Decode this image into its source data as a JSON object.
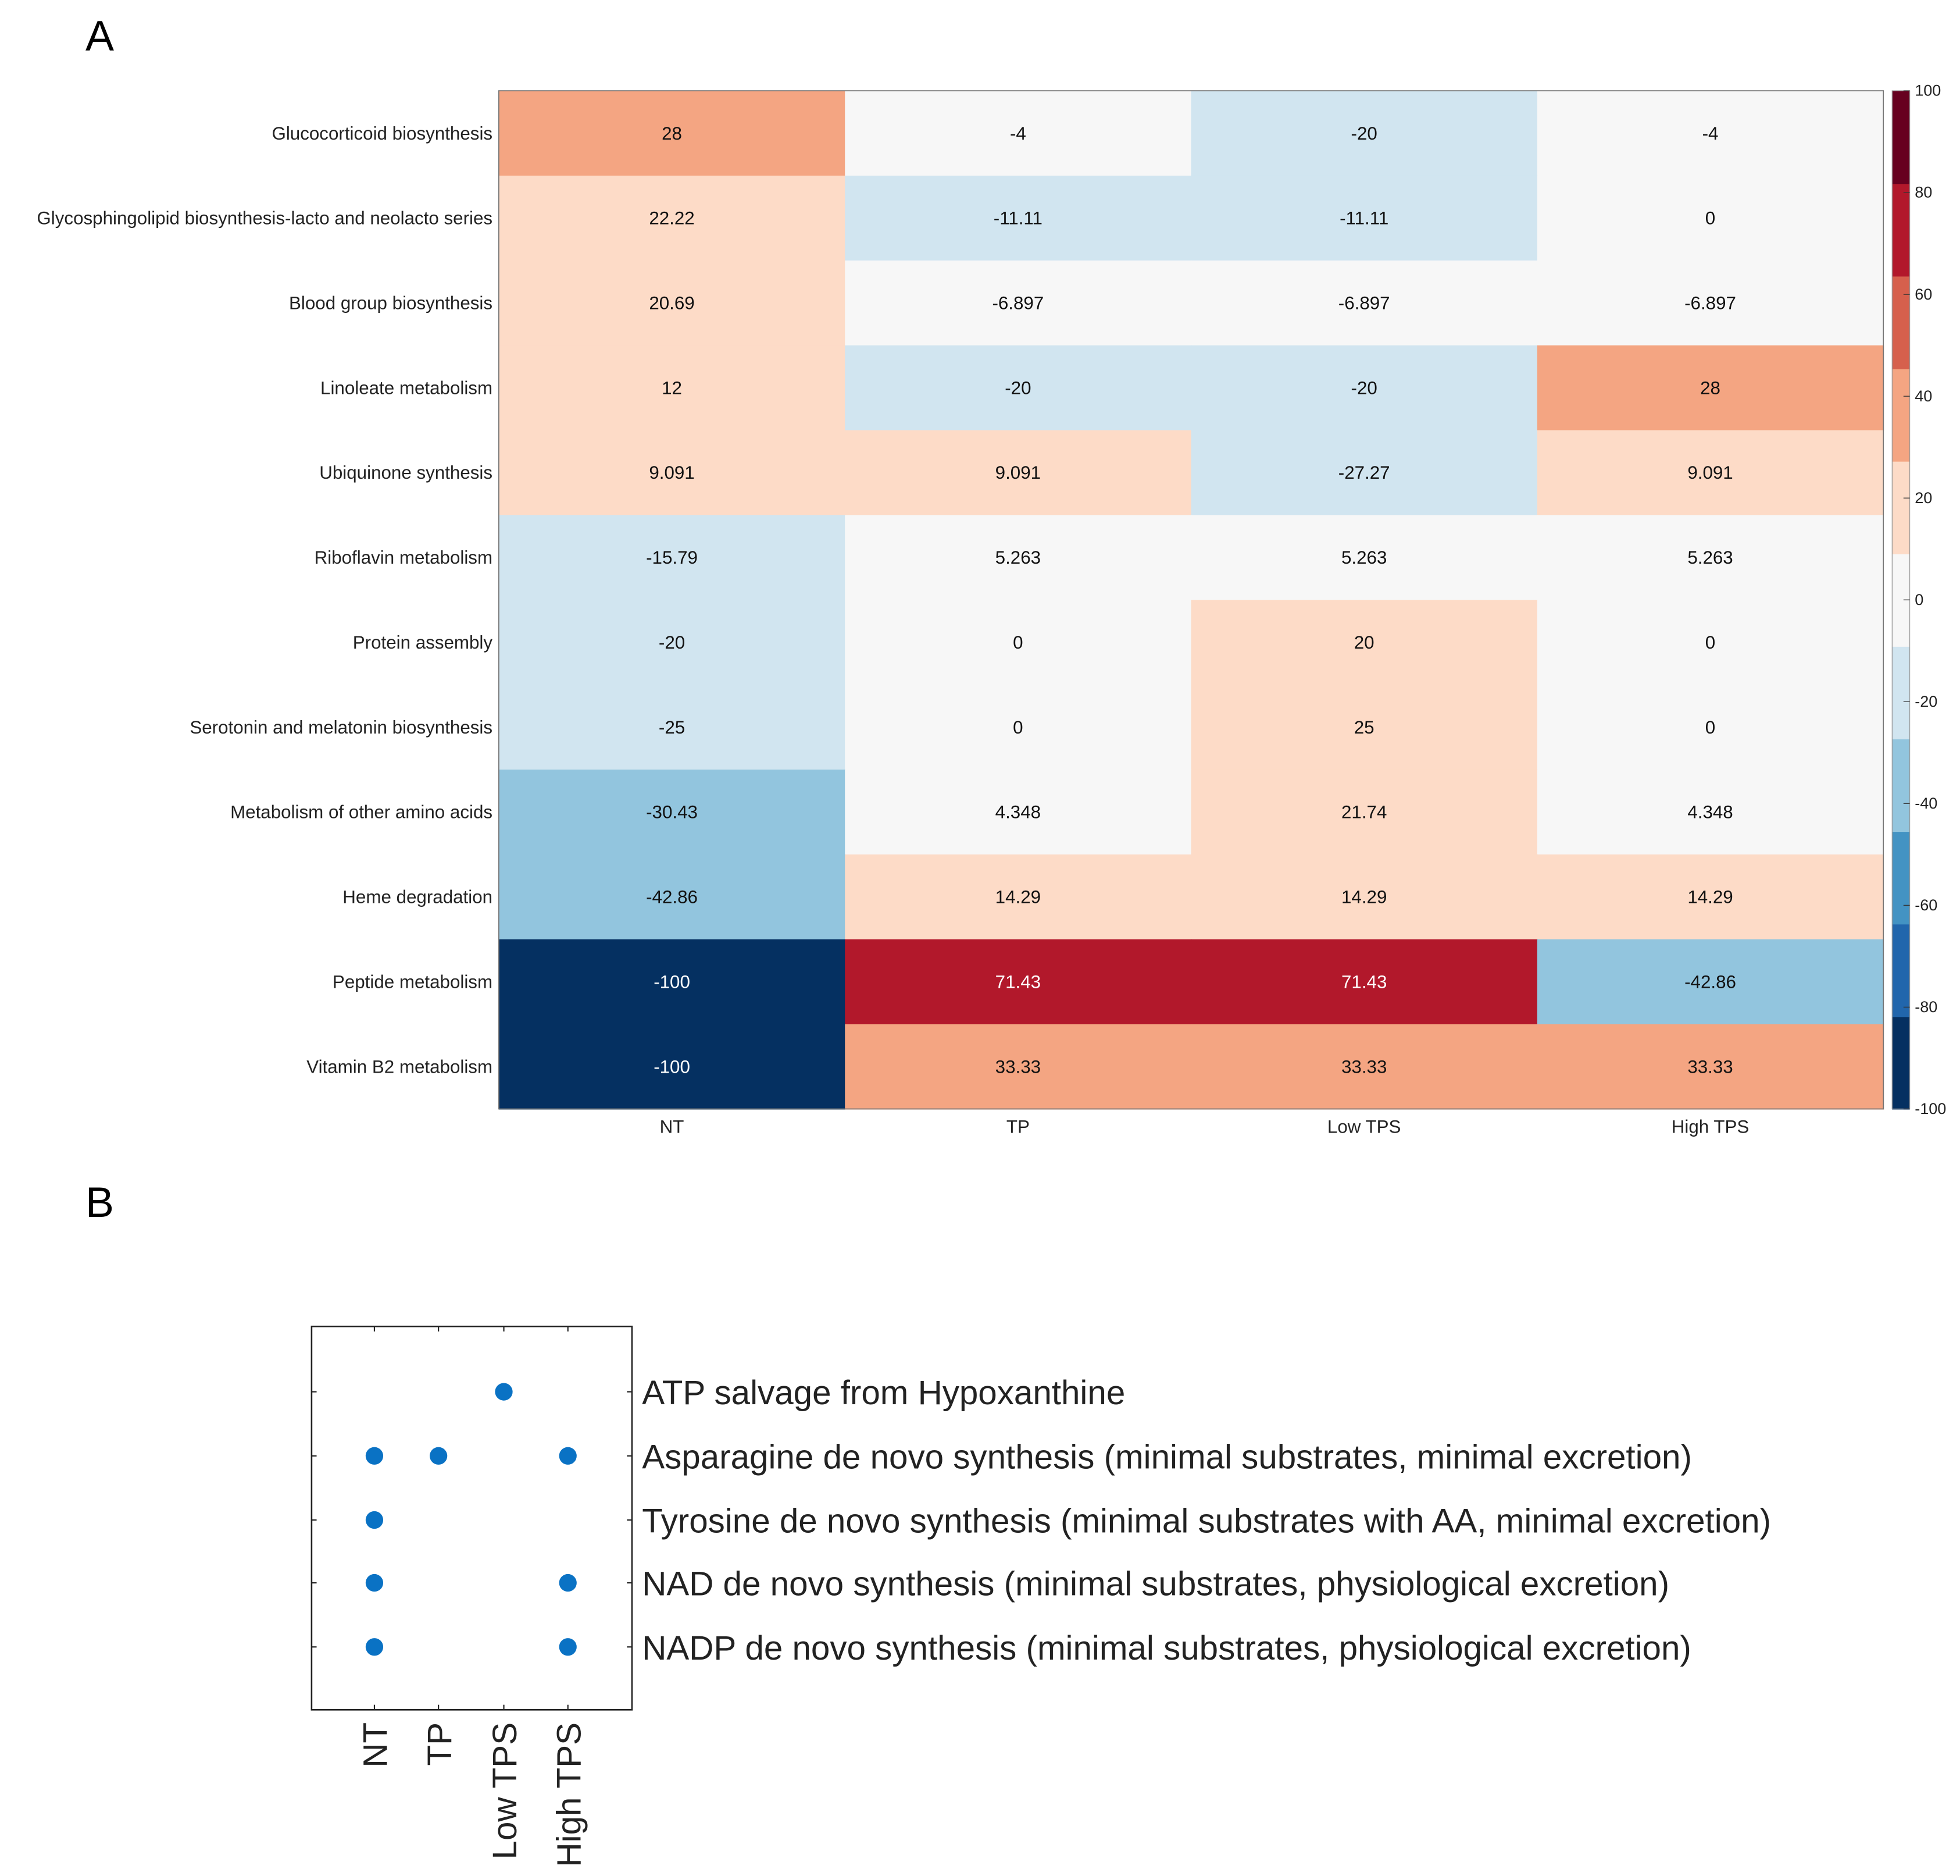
{
  "panels": {
    "a_label": "A",
    "b_label": "B"
  },
  "chart_data": [
    {
      "type": "heatmap",
      "title": "",
      "columns": [
        "NT",
        "TP",
        "Low TPS",
        "High TPS"
      ],
      "rows": [
        "Glucocorticoid biosynthesis",
        "Glycosphingolipid biosynthesis-lacto and neolacto series",
        "Blood group biosynthesis",
        "Linoleate metabolism",
        "Ubiquinone synthesis",
        "Riboflavin metabolism",
        "Protein assembly",
        "Serotonin and melatonin biosynthesis",
        "Metabolism of other amino acids",
        "Heme degradation",
        "Peptide metabolism",
        "Vitamin B2 metabolism"
      ],
      "values": [
        [
          "28",
          "-4",
          "-20",
          "-4"
        ],
        [
          "22.22",
          "-11.11",
          "-11.11",
          "0"
        ],
        [
          "20.69",
          "-6.897",
          "-6.897",
          "-6.897"
        ],
        [
          "12",
          "-20",
          "-20",
          "28"
        ],
        [
          "9.091",
          "9.091",
          "-27.27",
          "9.091"
        ],
        [
          "-15.79",
          "5.263",
          "5.263",
          "5.263"
        ],
        [
          "-20",
          "0",
          "20",
          "0"
        ],
        [
          "-25",
          "0",
          "25",
          "0"
        ],
        [
          "-30.43",
          "4.348",
          "21.74",
          "4.348"
        ],
        [
          "-42.86",
          "14.29",
          "14.29",
          "14.29"
        ],
        [
          "-100",
          "71.43",
          "71.43",
          "-42.86"
        ],
        [
          "-100",
          "33.33",
          "33.33",
          "33.33"
        ]
      ],
      "colorbar": {
        "range": [
          -100,
          100
        ],
        "ticks": [
          "100",
          "80",
          "60",
          "40",
          "20",
          "0",
          "-20",
          "-40",
          "-60",
          "-80",
          "-100"
        ],
        "colors": [
          "#053061",
          "#2166ac",
          "#4393c3",
          "#92c5de",
          "#d1e5f0",
          "#f7f7f7",
          "#fddbc7",
          "#f4a582",
          "#d6604d",
          "#b2182b",
          "#67001f"
        ]
      }
    },
    {
      "type": "scatter",
      "title": "",
      "columns": [
        "NT",
        "TP",
        "Low TPS",
        "High TPS"
      ],
      "rows": [
        "ATP salvage from Hypoxanthine",
        "Asparagine de novo synthesis (minimal substrates, minimal excretion)",
        "Tyrosine de novo synthesis (minimal substrates with AA, minimal excretion)",
        "NAD de novo synthesis (minimal substrates, physiological excretion)",
        "NADP de novo synthesis (minimal substrates, physiological excretion)"
      ],
      "presence": [
        [
          0,
          0,
          1,
          0
        ],
        [
          1,
          1,
          0,
          1
        ],
        [
          1,
          0,
          0,
          0
        ],
        [
          1,
          0,
          0,
          1
        ],
        [
          1,
          0,
          0,
          1
        ]
      ],
      "dot_color": "#0a72c4"
    }
  ]
}
